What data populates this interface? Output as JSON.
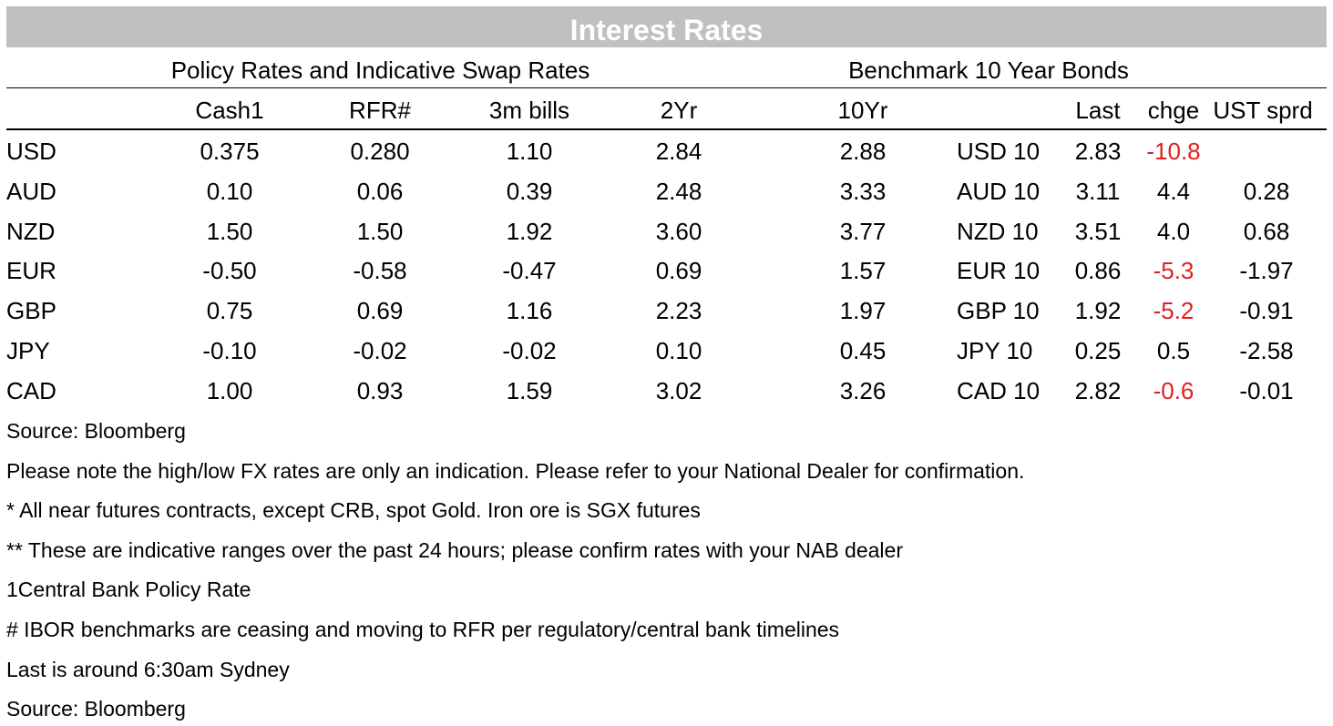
{
  "title": "Interest Rates",
  "policy_header": "Policy Rates and Indicative Swap Rates",
  "bonds_header": "Benchmark 10 Year Bonds",
  "columns": {
    "cash": "Cash1",
    "rfr": "RFR#",
    "bills": "3m bills",
    "y2": "2Yr",
    "y10": "10Yr",
    "last": "Last",
    "chge": "chge",
    "ust": "UST sprd"
  },
  "rows": [
    {
      "ccy": "USD",
      "cash": "0.375",
      "rfr": "0.280",
      "bills": "1.10",
      "y2": "2.84",
      "y10": "2.88",
      "bond": "USD 10",
      "last": "2.83",
      "chge": "-10.8",
      "ust": ""
    },
    {
      "ccy": "AUD",
      "cash": "0.10",
      "rfr": "0.06",
      "bills": "0.39",
      "y2": "2.48",
      "y10": "3.33",
      "bond": "AUD 10",
      "last": "3.11",
      "chge": "4.4",
      "ust": "0.28"
    },
    {
      "ccy": "NZD",
      "cash": "1.50",
      "rfr": "1.50",
      "bills": "1.92",
      "y2": "3.60",
      "y10": "3.77",
      "bond": "NZD 10",
      "last": "3.51",
      "chge": "4.0",
      "ust": "0.68"
    },
    {
      "ccy": "EUR",
      "cash": "-0.50",
      "rfr": "-0.58",
      "bills": "-0.47",
      "y2": "0.69",
      "y10": "1.57",
      "bond": "EUR 10",
      "last": "0.86",
      "chge": "-5.3",
      "ust": "-1.97"
    },
    {
      "ccy": "GBP",
      "cash": "0.75",
      "rfr": "0.69",
      "bills": "1.16",
      "y2": "2.23",
      "y10": "1.97",
      "bond": "GBP 10",
      "last": "1.92",
      "chge": "-5.2",
      "ust": "-0.91"
    },
    {
      "ccy": "JPY",
      "cash": "-0.10",
      "rfr": "-0.02",
      "bills": "-0.02",
      "y2": "0.10",
      "y10": "0.45",
      "bond": "JPY 10",
      "last": "0.25",
      "chge": "0.5",
      "ust": "-2.58"
    },
    {
      "ccy": "CAD",
      "cash": "1.00",
      "rfr": "0.93",
      "bills": "1.59",
      "y2": "3.02",
      "y10": "3.26",
      "bond": "CAD 10",
      "last": "2.82",
      "chge": "-0.6",
      "ust": "-0.01"
    }
  ],
  "notes": [
    "Source: Bloomberg",
    "Please note the high/low FX rates are only an indication. Please refer to your National Dealer for confirmation.",
    "* All near futures contracts, except CRB, spot Gold.  Iron ore is SGX futures",
    "** These are indicative ranges over the past 24 hours; please confirm rates with your NAB dealer",
    "1Central Bank Policy Rate",
    "# IBOR benchmarks are ceasing and moving to RFR per regulatory/central bank timelines",
    "Last is around 6:30am Sydney",
    "Source: Bloomberg"
  ],
  "colors": {
    "title_bg": "#c0c0c0",
    "title_text": "#ffffff",
    "negative_change": "#e0201f"
  }
}
